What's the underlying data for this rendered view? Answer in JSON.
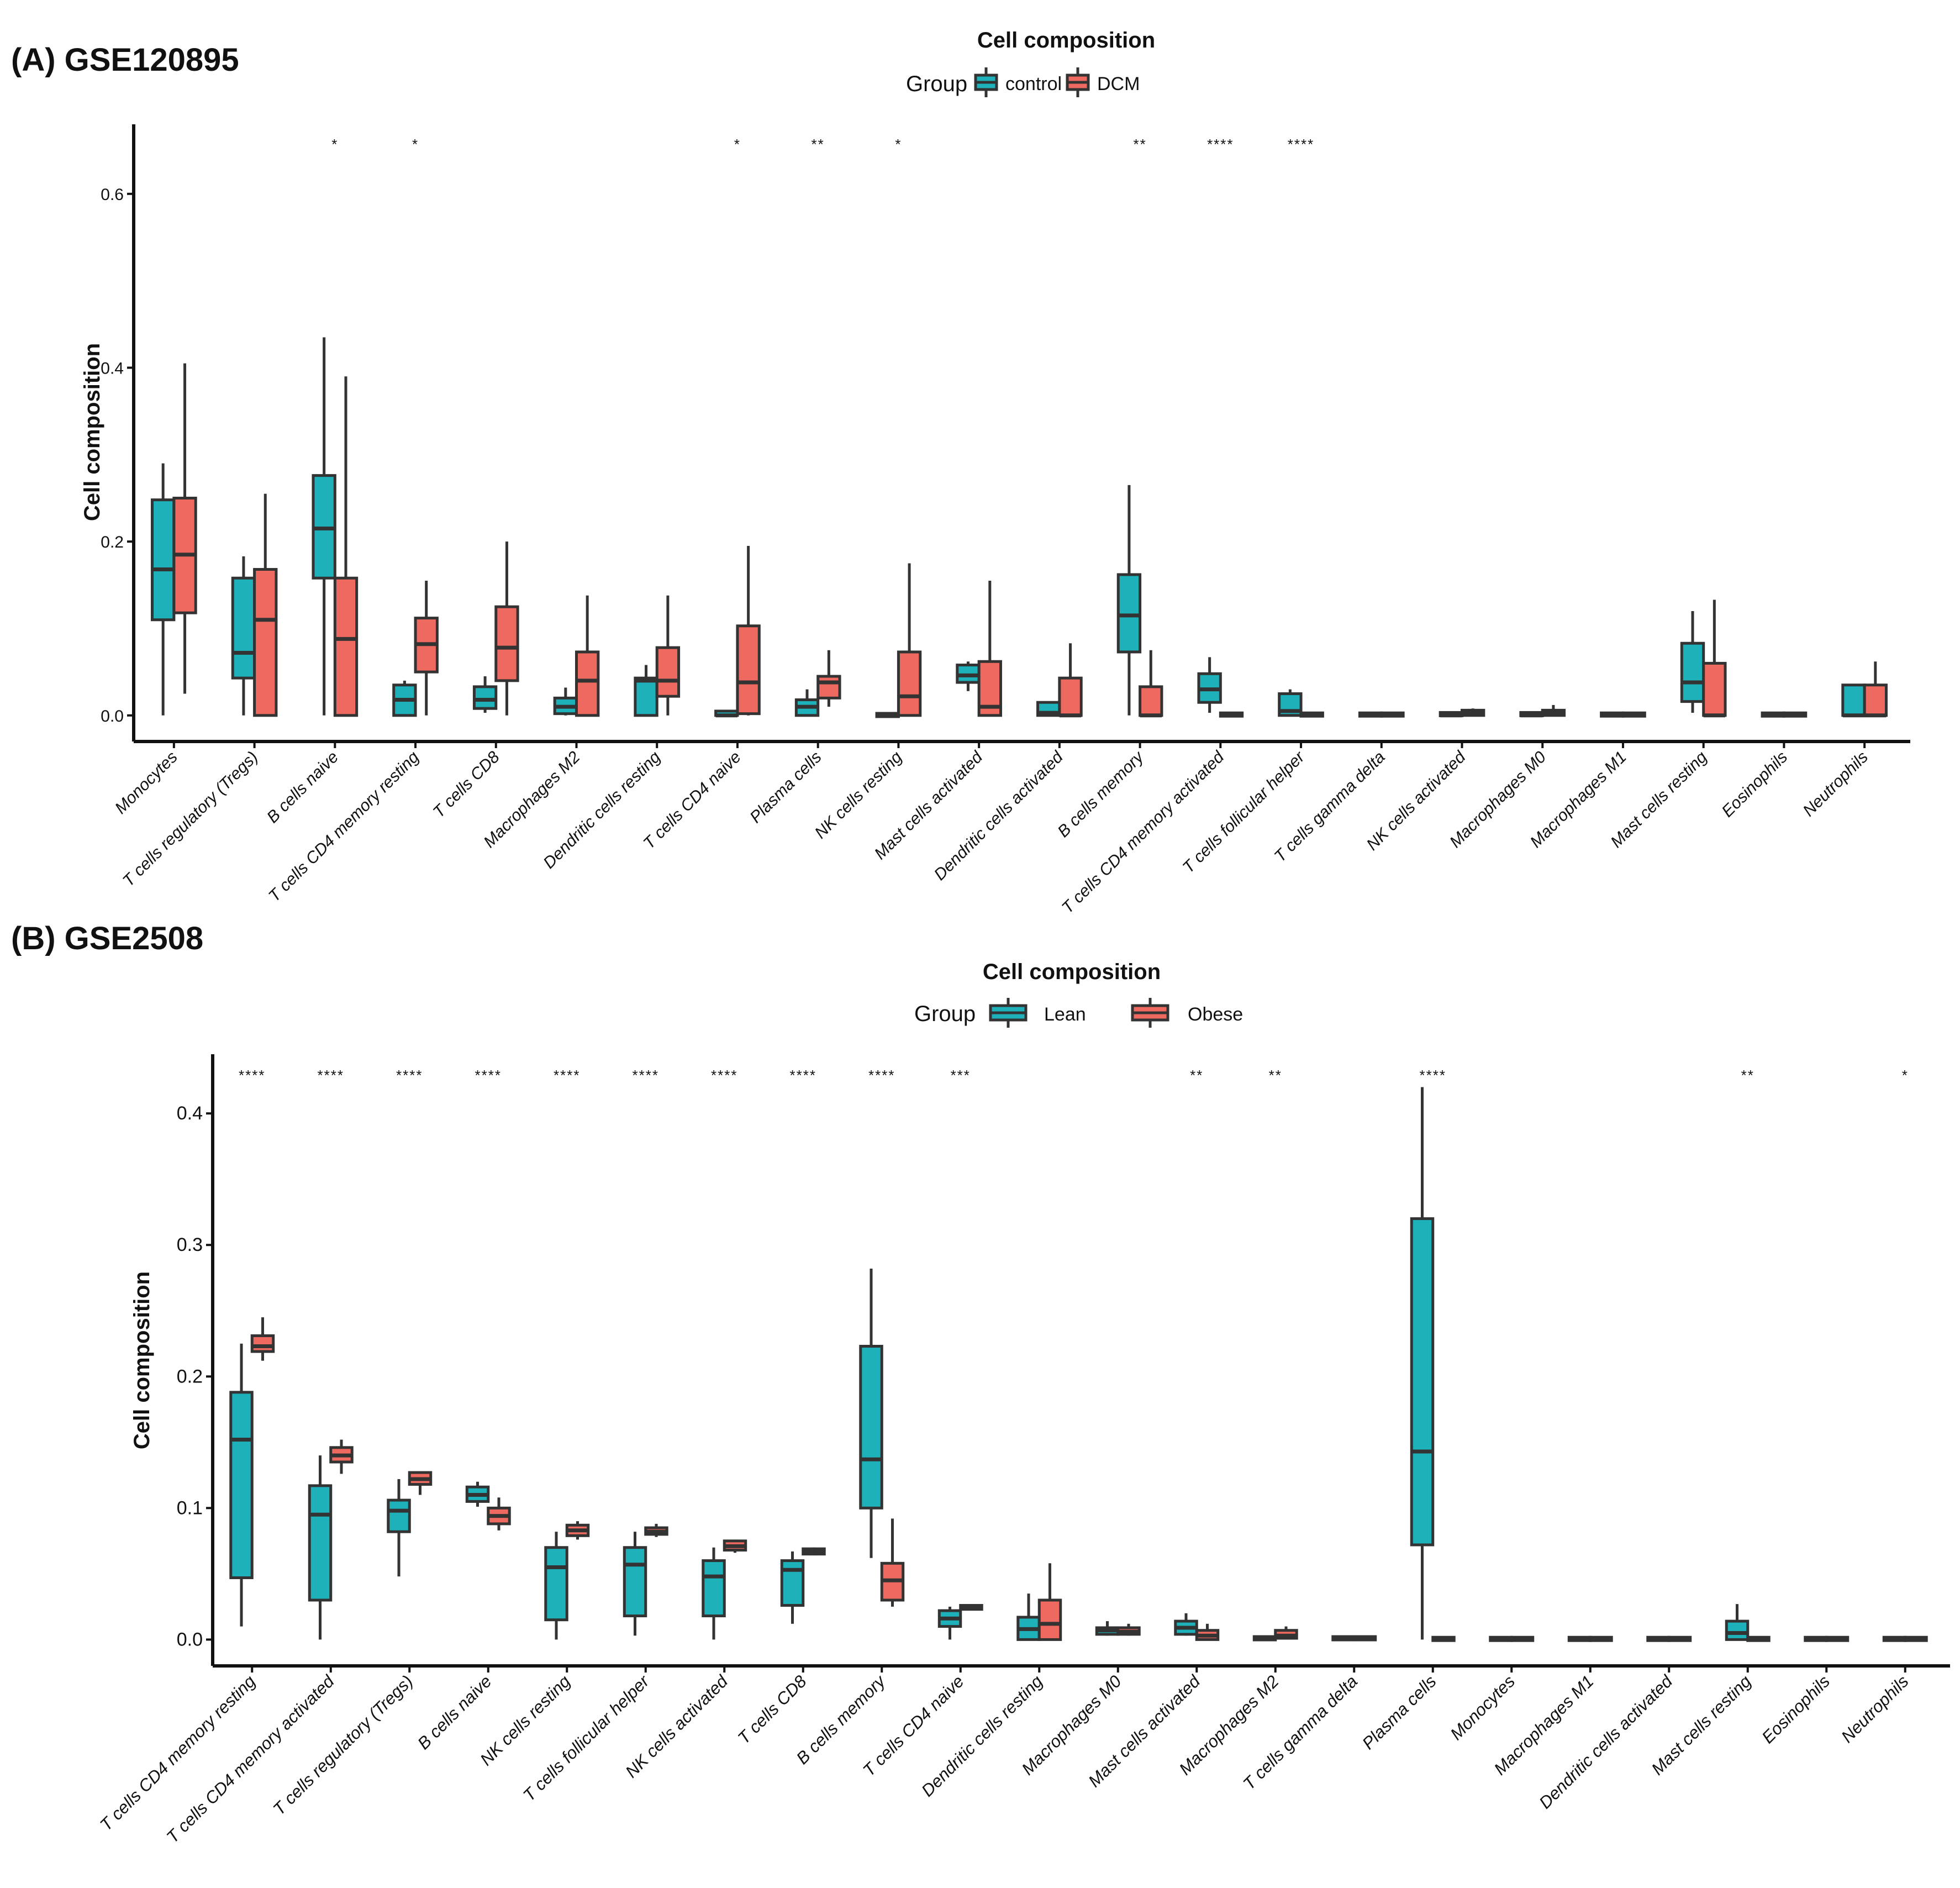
{
  "chart_data": [
    {
      "type": "boxplot",
      "panel_label": "(A) GSE120895",
      "title": "Cell composition",
      "legend_title": "Group",
      "legend_position": "top",
      "ylabel": "Cell composition",
      "xlabel": "",
      "ylim": [
        -0.03,
        0.68
      ],
      "yticks": [
        0.0,
        0.2,
        0.4,
        0.6
      ],
      "ytick_labels": [
        "0.0",
        "0.2",
        "0.4",
        "0.6"
      ],
      "groups": [
        {
          "name": "control",
          "color": "#1EB1BA"
        },
        {
          "name": "DCM",
          "color": "#EE6A61"
        }
      ],
      "categories": [
        "Monocytes",
        "T cells regulatory (Tregs)",
        "B cells naive",
        "T cells CD4 memory resting",
        "T cells CD8",
        "Macrophages M2",
        "Dendritic cells resting",
        "T cells CD4 naive",
        "Plasma cells",
        "NK cells resting",
        "Mast cells activated",
        "Dendritic cells activated",
        "B cells memory",
        "T cells CD4 memory activated",
        "T cells follicular helper",
        "T cells gamma delta",
        "NK cells activated",
        "Macrophages M0",
        "Macrophages M1",
        "Mast cells resting",
        "Eosinophils",
        "Neutrophils"
      ],
      "significance": [
        "",
        "",
        "*",
        "*",
        "",
        "",
        "",
        "*",
        "**",
        "*",
        "",
        "",
        "**",
        "****",
        "****",
        "",
        "",
        "",
        "",
        "",
        "",
        ""
      ],
      "series": [
        {
          "name": "control",
          "boxes": [
            [
              0.0,
              0.11,
              0.168,
              0.248,
              0.29
            ],
            [
              0.0,
              0.043,
              0.072,
              0.158,
              0.183
            ],
            [
              0.0,
              0.158,
              0.215,
              0.276,
              0.435
            ],
            [
              0.0,
              0.0,
              0.018,
              0.035,
              0.04
            ],
            [
              0.003,
              0.008,
              0.018,
              0.033,
              0.045
            ],
            [
              0.0,
              0.002,
              0.01,
              0.02,
              0.032
            ],
            [
              0.0,
              0.0,
              0.04,
              0.043,
              0.058
            ],
            [
              0.0,
              0.0,
              0.0,
              0.005,
              0.005
            ],
            [
              0.0,
              0.0,
              0.01,
              0.018,
              0.03
            ],
            [
              0.0,
              0.0,
              0.0,
              0.001,
              0.002
            ],
            [
              0.028,
              0.038,
              0.046,
              0.058,
              0.062
            ],
            [
              0.0,
              0.0,
              0.003,
              0.015,
              0.015
            ],
            [
              0.0,
              0.073,
              0.115,
              0.162,
              0.265
            ],
            [
              0.003,
              0.015,
              0.03,
              0.048,
              0.067
            ],
            [
              0.0,
              0.0,
              0.005,
              0.025,
              0.03
            ],
            [
              0.0,
              0.0,
              0.0,
              0.002,
              0.002
            ],
            [
              0.0,
              0.0,
              0.0,
              0.003,
              0.003
            ],
            [
              0.0,
              0.0,
              0.0,
              0.003,
              0.003
            ],
            [
              0.0,
              0.0,
              0.0,
              0.002,
              0.002
            ],
            [
              0.003,
              0.016,
              0.038,
              0.083,
              0.12
            ],
            [
              0.0,
              0.0,
              0.0,
              0.002,
              0.002
            ],
            [
              0.0,
              0.0,
              0.0,
              0.035,
              0.035
            ]
          ]
        },
        {
          "name": "DCM",
          "boxes": [
            [
              0.025,
              0.118,
              0.185,
              0.25,
              0.405
            ],
            [
              0.0,
              0.0,
              0.11,
              0.168,
              0.255
            ],
            [
              0.0,
              0.0,
              0.088,
              0.158,
              0.39
            ],
            [
              0.0,
              0.05,
              0.082,
              0.112,
              0.155
            ],
            [
              0.0,
              0.04,
              0.078,
              0.125,
              0.2
            ],
            [
              0.0,
              0.0,
              0.04,
              0.073,
              0.138
            ],
            [
              0.0,
              0.022,
              0.04,
              0.078,
              0.138
            ],
            [
              0.0,
              0.002,
              0.038,
              0.103,
              0.195
            ],
            [
              0.01,
              0.02,
              0.038,
              0.045,
              0.075
            ],
            [
              0.0,
              0.0,
              0.022,
              0.073,
              0.175
            ],
            [
              0.0,
              0.0,
              0.01,
              0.062,
              0.155
            ],
            [
              0.0,
              0.0,
              0.0,
              0.043,
              0.083
            ],
            [
              0.0,
              0.0,
              0.0,
              0.033,
              0.075
            ],
            [
              0.0,
              0.0,
              0.0,
              0.002,
              0.002
            ],
            [
              0.0,
              0.0,
              0.0,
              0.002,
              0.002
            ],
            [
              0.0,
              0.0,
              0.0,
              0.002,
              0.002
            ],
            [
              0.0,
              0.0,
              0.003,
              0.006,
              0.008
            ],
            [
              0.0,
              0.0,
              0.003,
              0.006,
              0.012
            ],
            [
              0.0,
              0.0,
              0.0,
              0.002,
              0.002
            ],
            [
              0.0,
              0.0,
              0.0,
              0.06,
              0.133
            ],
            [
              0.0,
              0.0,
              0.0,
              0.002,
              0.002
            ],
            [
              0.0,
              0.0,
              0.0,
              0.035,
              0.062
            ]
          ]
        }
      ]
    },
    {
      "type": "boxplot",
      "panel_label": "(B) GSE2508",
      "title": "Cell composition",
      "legend_title": "Group",
      "legend_position": "top",
      "ylabel": "Cell composition",
      "xlabel": "",
      "ylim": [
        -0.02,
        0.445
      ],
      "yticks": [
        0.0,
        0.1,
        0.2,
        0.3,
        0.4
      ],
      "ytick_labels": [
        "0.0",
        "0.1",
        "0.2",
        "0.3",
        "0.4"
      ],
      "groups": [
        {
          "name": "Lean",
          "color": "#1EB1BA"
        },
        {
          "name": "Obese",
          "color": "#EE6A61"
        }
      ],
      "categories": [
        "T cells CD4 memory resting",
        "T cells CD4 memory activated",
        "T cells regulatory (Tregs)",
        "B cells naive",
        "NK cells resting",
        "T cells follicular helper",
        "NK cells activated",
        "T cells CD8",
        "B cells memory",
        "T cells CD4 naive",
        "Dendritic cells resting",
        "Macrophages M0",
        "Mast cells activated",
        "Macrophages M2",
        "T cells gamma delta",
        "Plasma cells",
        "Monocytes",
        "Macrophages M1",
        "Dendritic cells activated",
        "Mast cells resting",
        "Eosinophils",
        "Neutrophils"
      ],
      "significance": [
        "****",
        "****",
        "****",
        "****",
        "****",
        "****",
        "****",
        "****",
        "****",
        "***",
        "",
        "",
        "**",
        "**",
        "",
        "****",
        "",
        "",
        "",
        "**",
        "",
        "*"
      ],
      "series": [
        {
          "name": "Lean",
          "boxes": [
            [
              0.01,
              0.047,
              0.152,
              0.188,
              0.225
            ],
            [
              0.0,
              0.03,
              0.095,
              0.117,
              0.14
            ],
            [
              0.048,
              0.082,
              0.098,
              0.106,
              0.122
            ],
            [
              0.101,
              0.105,
              0.11,
              0.116,
              0.12
            ],
            [
              0.0,
              0.015,
              0.055,
              0.07,
              0.082
            ],
            [
              0.003,
              0.018,
              0.057,
              0.07,
              0.082
            ],
            [
              0.0,
              0.018,
              0.048,
              0.06,
              0.07
            ],
            [
              0.012,
              0.026,
              0.053,
              0.06,
              0.067
            ],
            [
              0.062,
              0.1,
              0.137,
              0.223,
              0.282
            ],
            [
              0.0,
              0.01,
              0.016,
              0.022,
              0.025
            ],
            [
              0.0,
              0.0,
              0.008,
              0.017,
              0.035
            ],
            [
              0.003,
              0.004,
              0.007,
              0.009,
              0.014
            ],
            [
              0.003,
              0.004,
              0.009,
              0.014,
              0.02
            ],
            [
              0.0,
              0.0,
              0.001,
              0.002,
              0.002
            ],
            [
              0.0,
              0.0,
              0.001,
              0.002,
              0.002
            ],
            [
              0.0,
              0.072,
              0.143,
              0.32,
              0.42
            ],
            [
              0.0,
              0.0,
              0.0,
              0.001,
              0.001
            ],
            [
              0.0,
              0.0,
              0.0,
              0.001,
              0.001
            ],
            [
              0.0,
              0.0,
              0.0,
              0.001,
              0.001
            ],
            [
              0.0,
              0.0,
              0.005,
              0.014,
              0.027
            ],
            [
              0.0,
              0.0,
              0.0,
              0.001,
              0.001
            ],
            [
              0.0,
              0.0,
              0.0,
              0.001,
              0.001
            ]
          ]
        },
        {
          "name": "Obese",
          "boxes": [
            [
              0.212,
              0.219,
              0.223,
              0.231,
              0.245
            ],
            [
              0.126,
              0.135,
              0.14,
              0.146,
              0.152
            ],
            [
              0.11,
              0.118,
              0.122,
              0.127,
              0.128
            ],
            [
              0.083,
              0.088,
              0.094,
              0.1,
              0.108
            ],
            [
              0.076,
              0.079,
              0.083,
              0.087,
              0.09
            ],
            [
              0.078,
              0.08,
              0.082,
              0.085,
              0.088
            ],
            [
              0.066,
              0.068,
              0.071,
              0.075,
              0.076
            ],
            [
              0.064,
              0.065,
              0.067,
              0.069,
              0.07
            ],
            [
              0.025,
              0.03,
              0.045,
              0.058,
              0.092
            ],
            [
              0.022,
              0.023,
              0.024,
              0.026,
              0.026
            ],
            [
              0.0,
              0.0,
              0.012,
              0.03,
              0.058
            ],
            [
              0.003,
              0.004,
              0.006,
              0.009,
              0.012
            ],
            [
              0.0,
              0.0,
              0.003,
              0.007,
              0.012
            ],
            [
              0.0,
              0.001,
              0.003,
              0.007,
              0.01
            ],
            [
              0.0,
              0.0,
              0.001,
              0.002,
              0.003
            ],
            [
              0.0,
              0.0,
              0.0,
              0.001,
              0.001
            ],
            [
              0.0,
              0.0,
              0.0,
              0.001,
              0.001
            ],
            [
              0.0,
              0.0,
              0.0,
              0.001,
              0.001
            ],
            [
              0.0,
              0.0,
              0.0,
              0.001,
              0.001
            ],
            [
              0.0,
              0.0,
              0.0,
              0.001,
              0.001
            ],
            [
              0.0,
              0.0,
              0.0,
              0.001,
              0.001
            ],
            [
              0.0,
              0.0,
              0.0,
              0.001,
              0.001
            ]
          ]
        }
      ]
    }
  ]
}
